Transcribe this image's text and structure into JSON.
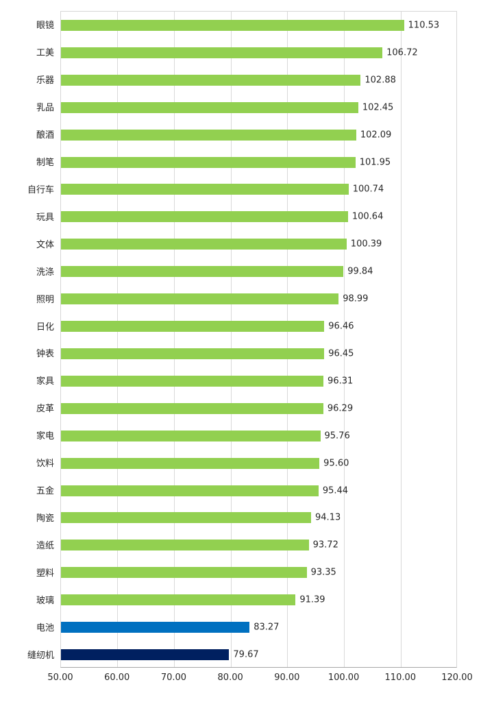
{
  "chart_data": {
    "type": "bar",
    "orientation": "horizontal",
    "title": "",
    "xlabel": "",
    "ylabel": "",
    "xlim": [
      50,
      120
    ],
    "grid": true,
    "legend": null,
    "x_ticks": [
      "50.00",
      "60.00",
      "70.00",
      "80.00",
      "90.00",
      "100.00",
      "110.00",
      "120.00"
    ],
    "categories": [
      "眼镜",
      "工美",
      "乐器",
      "乳品",
      "酿酒",
      "制笔",
      "自行车",
      "玩具",
      "文体",
      "洗涤",
      "照明",
      "日化",
      "钟表",
      "家具",
      "皮革",
      "家电",
      "饮料",
      "五金",
      "陶瓷",
      "造纸",
      "塑料",
      "玻璃",
      "电池",
      "缝纫机"
    ],
    "values": [
      110.53,
      106.72,
      102.88,
      102.45,
      102.09,
      101.95,
      100.74,
      100.64,
      100.39,
      99.84,
      98.99,
      96.46,
      96.45,
      96.31,
      96.29,
      95.76,
      95.6,
      95.44,
      94.13,
      93.72,
      93.35,
      91.39,
      83.27,
      79.67
    ],
    "value_labels": [
      "110.53",
      "106.72",
      "102.88",
      "102.45",
      "102.09",
      "101.95",
      "100.74",
      "100.64",
      "100.39",
      "99.84",
      "98.99",
      "96.46",
      "96.45",
      "96.31",
      "96.29",
      "95.76",
      "95.60",
      "95.44",
      "94.13",
      "93.72",
      "93.35",
      "91.39",
      "83.27",
      "79.67"
    ],
    "bar_colors": [
      "green",
      "green",
      "green",
      "green",
      "green",
      "green",
      "green",
      "green",
      "green",
      "green",
      "green",
      "green",
      "green",
      "green",
      "green",
      "green",
      "green",
      "green",
      "green",
      "green",
      "green",
      "green",
      "blue",
      "navy"
    ],
    "colors": {
      "green": "#92D050",
      "blue": "#0070C0",
      "navy": "#002060"
    }
  }
}
